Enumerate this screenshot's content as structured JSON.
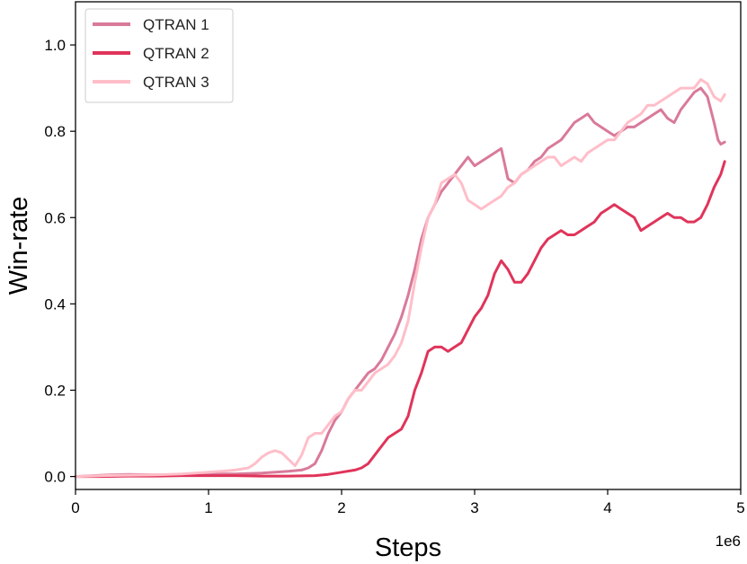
{
  "chart_data": {
    "type": "line",
    "xlabel": "Steps",
    "ylabel": "Win-rate",
    "x_offset_label": "1e6",
    "xlim": [
      0,
      5
    ],
    "ylim": [
      -0.03,
      1.1
    ],
    "xticks": [
      0,
      1,
      2,
      3,
      4,
      5
    ],
    "xtick_labels": [
      "0",
      "1",
      "2",
      "3",
      "4",
      "5"
    ],
    "yticks": [
      0.0,
      0.2,
      0.4,
      0.6,
      0.8,
      1.0
    ],
    "ytick_labels": [
      "0.0",
      "0.2",
      "0.4",
      "0.6",
      "0.8",
      "1.0"
    ],
    "grid": false,
    "legend_position": "upper-left",
    "series": [
      {
        "name": "QTRAN 1",
        "color": "#d97a9a",
        "points": [
          [
            0,
            0.0
          ],
          [
            0.2,
            0.003
          ],
          [
            0.4,
            0.005
          ],
          [
            0.6,
            0.004
          ],
          [
            0.8,
            0.005
          ],
          [
            1.0,
            0.006
          ],
          [
            1.2,
            0.006
          ],
          [
            1.4,
            0.008
          ],
          [
            1.6,
            0.012
          ],
          [
            1.7,
            0.015
          ],
          [
            1.75,
            0.02
          ],
          [
            1.8,
            0.03
          ],
          [
            1.85,
            0.06
          ],
          [
            1.9,
            0.1
          ],
          [
            1.95,
            0.13
          ],
          [
            2.0,
            0.15
          ],
          [
            2.05,
            0.18
          ],
          [
            2.1,
            0.2
          ],
          [
            2.15,
            0.22
          ],
          [
            2.2,
            0.24
          ],
          [
            2.25,
            0.25
          ],
          [
            2.3,
            0.27
          ],
          [
            2.35,
            0.3
          ],
          [
            2.4,
            0.33
          ],
          [
            2.45,
            0.37
          ],
          [
            2.5,
            0.42
          ],
          [
            2.55,
            0.48
          ],
          [
            2.6,
            0.55
          ],
          [
            2.65,
            0.6
          ],
          [
            2.7,
            0.63
          ],
          [
            2.75,
            0.66
          ],
          [
            2.8,
            0.68
          ],
          [
            2.85,
            0.7
          ],
          [
            2.9,
            0.72
          ],
          [
            2.95,
            0.74
          ],
          [
            3.0,
            0.72
          ],
          [
            3.05,
            0.73
          ],
          [
            3.1,
            0.74
          ],
          [
            3.15,
            0.75
          ],
          [
            3.2,
            0.76
          ],
          [
            3.25,
            0.69
          ],
          [
            3.3,
            0.68
          ],
          [
            3.35,
            0.7
          ],
          [
            3.4,
            0.71
          ],
          [
            3.45,
            0.73
          ],
          [
            3.5,
            0.74
          ],
          [
            3.55,
            0.76
          ],
          [
            3.6,
            0.77
          ],
          [
            3.65,
            0.78
          ],
          [
            3.7,
            0.8
          ],
          [
            3.75,
            0.82
          ],
          [
            3.8,
            0.83
          ],
          [
            3.85,
            0.84
          ],
          [
            3.9,
            0.82
          ],
          [
            3.95,
            0.81
          ],
          [
            4.0,
            0.8
          ],
          [
            4.05,
            0.79
          ],
          [
            4.1,
            0.8
          ],
          [
            4.15,
            0.81
          ],
          [
            4.2,
            0.81
          ],
          [
            4.25,
            0.82
          ],
          [
            4.3,
            0.83
          ],
          [
            4.35,
            0.84
          ],
          [
            4.4,
            0.85
          ],
          [
            4.45,
            0.83
          ],
          [
            4.5,
            0.82
          ],
          [
            4.55,
            0.85
          ],
          [
            4.6,
            0.87
          ],
          [
            4.65,
            0.89
          ],
          [
            4.7,
            0.9
          ],
          [
            4.75,
            0.88
          ],
          [
            4.8,
            0.82
          ],
          [
            4.83,
            0.78
          ],
          [
            4.85,
            0.77
          ],
          [
            4.88,
            0.775
          ]
        ]
      },
      {
        "name": "QTRAN 2",
        "color": "#e0345a",
        "points": [
          [
            0,
            0.0
          ],
          [
            0.2,
            0.0
          ],
          [
            0.4,
            0.001
          ],
          [
            0.6,
            0.001
          ],
          [
            0.8,
            0.002
          ],
          [
            1.0,
            0.002
          ],
          [
            1.2,
            0.002
          ],
          [
            1.4,
            0.001
          ],
          [
            1.6,
            0.001
          ],
          [
            1.8,
            0.002
          ],
          [
            1.9,
            0.005
          ],
          [
            2.0,
            0.01
          ],
          [
            2.1,
            0.015
          ],
          [
            2.15,
            0.02
          ],
          [
            2.2,
            0.03
          ],
          [
            2.25,
            0.05
          ],
          [
            2.3,
            0.07
          ],
          [
            2.35,
            0.09
          ],
          [
            2.4,
            0.1
          ],
          [
            2.45,
            0.11
          ],
          [
            2.5,
            0.14
          ],
          [
            2.55,
            0.2
          ],
          [
            2.6,
            0.24
          ],
          [
            2.65,
            0.29
          ],
          [
            2.7,
            0.3
          ],
          [
            2.75,
            0.3
          ],
          [
            2.8,
            0.29
          ],
          [
            2.85,
            0.3
          ],
          [
            2.9,
            0.31
          ],
          [
            2.95,
            0.34
          ],
          [
            3.0,
            0.37
          ],
          [
            3.05,
            0.39
          ],
          [
            3.1,
            0.42
          ],
          [
            3.15,
            0.47
          ],
          [
            3.2,
            0.5
          ],
          [
            3.25,
            0.48
          ],
          [
            3.3,
            0.45
          ],
          [
            3.35,
            0.45
          ],
          [
            3.4,
            0.47
          ],
          [
            3.45,
            0.5
          ],
          [
            3.5,
            0.53
          ],
          [
            3.55,
            0.55
          ],
          [
            3.6,
            0.56
          ],
          [
            3.65,
            0.57
          ],
          [
            3.7,
            0.56
          ],
          [
            3.75,
            0.56
          ],
          [
            3.8,
            0.57
          ],
          [
            3.85,
            0.58
          ],
          [
            3.9,
            0.59
          ],
          [
            3.95,
            0.61
          ],
          [
            4.0,
            0.62
          ],
          [
            4.05,
            0.63
          ],
          [
            4.1,
            0.62
          ],
          [
            4.15,
            0.61
          ],
          [
            4.2,
            0.6
          ],
          [
            4.25,
            0.57
          ],
          [
            4.3,
            0.58
          ],
          [
            4.35,
            0.59
          ],
          [
            4.4,
            0.6
          ],
          [
            4.45,
            0.61
          ],
          [
            4.5,
            0.6
          ],
          [
            4.55,
            0.6
          ],
          [
            4.6,
            0.59
          ],
          [
            4.65,
            0.59
          ],
          [
            4.7,
            0.6
          ],
          [
            4.75,
            0.63
          ],
          [
            4.8,
            0.67
          ],
          [
            4.85,
            0.7
          ],
          [
            4.88,
            0.73
          ]
        ]
      },
      {
        "name": "QTRAN 3",
        "color": "#ffbec9",
        "points": [
          [
            0,
            0.0
          ],
          [
            0.2,
            0.002
          ],
          [
            0.4,
            0.003
          ],
          [
            0.6,
            0.004
          ],
          [
            0.8,
            0.006
          ],
          [
            1.0,
            0.01
          ],
          [
            1.1,
            0.012
          ],
          [
            1.2,
            0.015
          ],
          [
            1.3,
            0.02
          ],
          [
            1.35,
            0.03
          ],
          [
            1.4,
            0.045
          ],
          [
            1.45,
            0.055
          ],
          [
            1.5,
            0.06
          ],
          [
            1.55,
            0.055
          ],
          [
            1.6,
            0.04
          ],
          [
            1.65,
            0.025
          ],
          [
            1.7,
            0.05
          ],
          [
            1.75,
            0.09
          ],
          [
            1.8,
            0.1
          ],
          [
            1.85,
            0.1
          ],
          [
            1.9,
            0.12
          ],
          [
            1.95,
            0.14
          ],
          [
            2.0,
            0.15
          ],
          [
            2.05,
            0.18
          ],
          [
            2.1,
            0.2
          ],
          [
            2.15,
            0.2
          ],
          [
            2.2,
            0.22
          ],
          [
            2.25,
            0.24
          ],
          [
            2.3,
            0.25
          ],
          [
            2.35,
            0.26
          ],
          [
            2.4,
            0.28
          ],
          [
            2.45,
            0.31
          ],
          [
            2.5,
            0.36
          ],
          [
            2.55,
            0.45
          ],
          [
            2.6,
            0.53
          ],
          [
            2.65,
            0.6
          ],
          [
            2.7,
            0.63
          ],
          [
            2.75,
            0.68
          ],
          [
            2.8,
            0.69
          ],
          [
            2.85,
            0.7
          ],
          [
            2.9,
            0.68
          ],
          [
            2.95,
            0.64
          ],
          [
            3.0,
            0.63
          ],
          [
            3.05,
            0.62
          ],
          [
            3.1,
            0.63
          ],
          [
            3.15,
            0.64
          ],
          [
            3.2,
            0.65
          ],
          [
            3.25,
            0.67
          ],
          [
            3.3,
            0.68
          ],
          [
            3.35,
            0.7
          ],
          [
            3.4,
            0.71
          ],
          [
            3.45,
            0.72
          ],
          [
            3.5,
            0.73
          ],
          [
            3.55,
            0.74
          ],
          [
            3.6,
            0.74
          ],
          [
            3.65,
            0.72
          ],
          [
            3.7,
            0.73
          ],
          [
            3.75,
            0.74
          ],
          [
            3.8,
            0.73
          ],
          [
            3.85,
            0.75
          ],
          [
            3.9,
            0.76
          ],
          [
            3.95,
            0.77
          ],
          [
            4.0,
            0.78
          ],
          [
            4.05,
            0.78
          ],
          [
            4.1,
            0.8
          ],
          [
            4.15,
            0.82
          ],
          [
            4.2,
            0.83
          ],
          [
            4.25,
            0.84
          ],
          [
            4.3,
            0.86
          ],
          [
            4.35,
            0.86
          ],
          [
            4.4,
            0.87
          ],
          [
            4.45,
            0.88
          ],
          [
            4.5,
            0.89
          ],
          [
            4.55,
            0.9
          ],
          [
            4.6,
            0.9
          ],
          [
            4.65,
            0.9
          ],
          [
            4.7,
            0.92
          ],
          [
            4.75,
            0.91
          ],
          [
            4.8,
            0.88
          ],
          [
            4.85,
            0.87
          ],
          [
            4.88,
            0.885
          ]
        ]
      }
    ]
  }
}
